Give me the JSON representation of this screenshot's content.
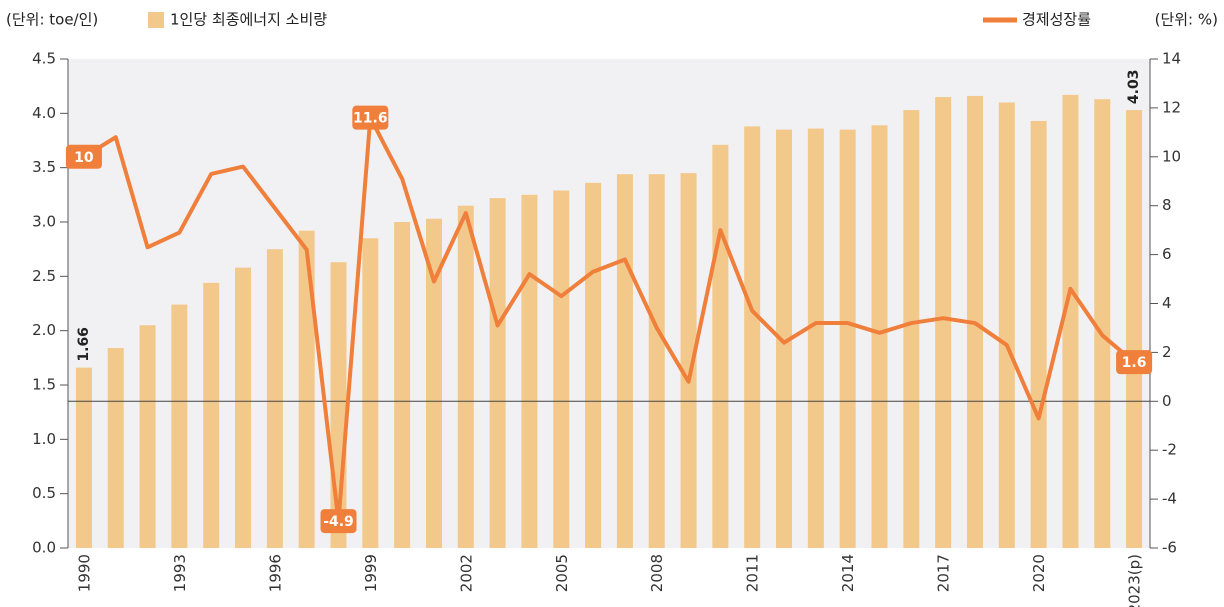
{
  "chart_data": {
    "type": "bar_line",
    "y_label": "(단위: toe/인)",
    "y2_label": "(단위: %)",
    "categories": [
      "1990",
      null,
      null,
      "1993",
      null,
      null,
      "1996",
      null,
      null,
      "1999",
      null,
      null,
      "2002",
      null,
      null,
      "2005",
      null,
      null,
      "2008",
      null,
      null,
      "2011",
      null,
      null,
      "2014",
      null,
      null,
      "2017",
      null,
      null,
      "2020",
      null,
      null,
      "2023(p)"
    ],
    "series": [
      {
        "name": "1인당 최종에너지 소비량",
        "type": "bar",
        "color": "#f2c98a",
        "values": [
          1.66,
          1.84,
          2.05,
          2.24,
          2.44,
          2.58,
          2.75,
          2.92,
          2.63,
          2.85,
          3.0,
          3.03,
          3.15,
          3.22,
          3.25,
          3.29,
          3.36,
          3.44,
          3.44,
          3.45,
          3.71,
          3.88,
          3.85,
          3.86,
          3.85,
          3.89,
          4.03,
          4.15,
          4.16,
          4.1,
          3.93,
          4.17,
          4.13,
          4.03
        ],
        "value_labels": [
          "1.66",
          null,
          null,
          null,
          null,
          null,
          null,
          null,
          null,
          null,
          null,
          null,
          null,
          null,
          null,
          null,
          null,
          null,
          null,
          null,
          null,
          null,
          null,
          null,
          null,
          null,
          null,
          null,
          null,
          null,
          null,
          null,
          null,
          "4.03"
        ]
      },
      {
        "name": "경제성장률",
        "type": "line",
        "axis": "y2",
        "color": "#f07f3c",
        "values": [
          10,
          10.8,
          6.3,
          6.9,
          9.3,
          9.6,
          7.9,
          6.2,
          -4.9,
          11.6,
          9.1,
          4.9,
          7.7,
          3.1,
          5.2,
          4.3,
          5.3,
          5.8,
          3.0,
          0.8,
          7.0,
          3.7,
          2.4,
          3.2,
          3.2,
          2.8,
          3.2,
          3.4,
          3.2,
          2.3,
          -0.7,
          4.6,
          2.7,
          1.6
        ],
        "value_labels": [
          "10",
          null,
          null,
          null,
          null,
          null,
          null,
          null,
          "-4.9",
          "11.6",
          null,
          null,
          null,
          null,
          null,
          null,
          null,
          null,
          null,
          null,
          null,
          null,
          null,
          null,
          null,
          null,
          null,
          null,
          null,
          null,
          null,
          null,
          null,
          "1.6"
        ]
      }
    ],
    "ylim": [
      0,
      4.5
    ],
    "yticks": [
      {
        "value": 0,
        "label": "0.0"
      },
      0.5,
      {
        "value": 1,
        "label": "1.0"
      },
      1.5,
      {
        "value": 2,
        "label": "2.0"
      },
      2.5,
      {
        "value": 3,
        "label": "3.0"
      },
      3.5,
      {
        "value": 4,
        "label": "4.0"
      },
      4.5
    ],
    "y2lim": [
      -6,
      14
    ],
    "y2ticks": [
      -6,
      -4,
      -2,
      0,
      2,
      4,
      6,
      8,
      10,
      12,
      14
    ]
  }
}
